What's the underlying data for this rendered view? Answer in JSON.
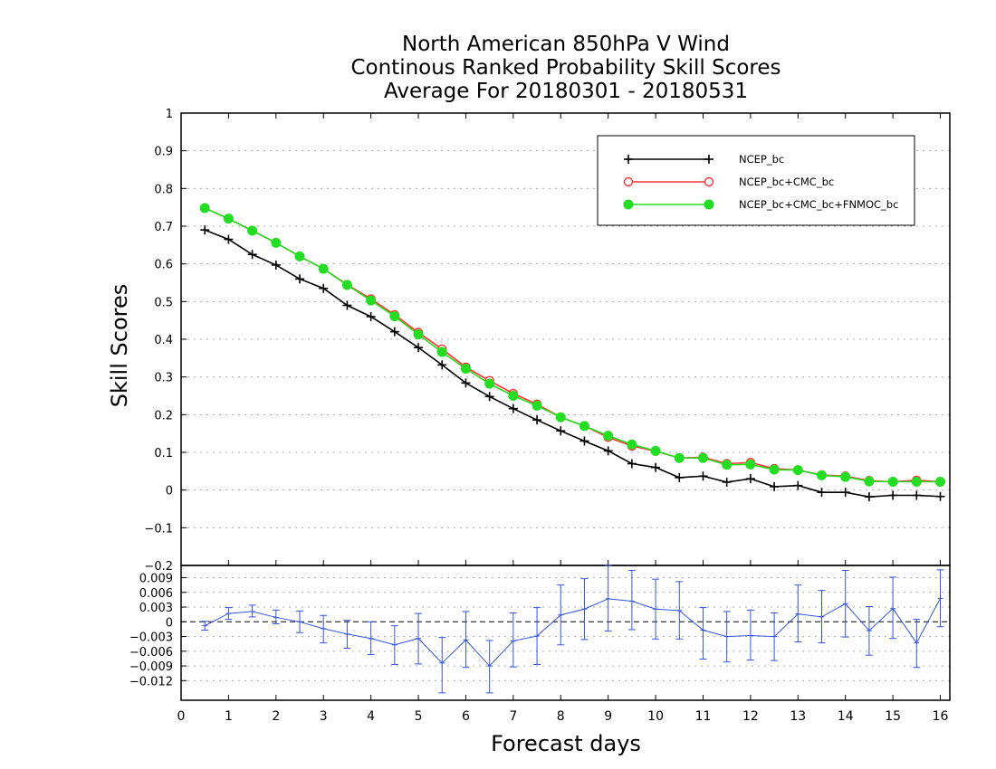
{
  "chart_data": [
    {
      "type": "line",
      "title": [
        "North American 850hPa V Wind",
        "Continous Ranked Probability Skill Scores",
        "Average For 20180301 - 20180531"
      ],
      "xlabel": "Forecast days",
      "ylabel": "Skill Scores",
      "xlim": [
        0,
        16.2
      ],
      "ylim": [
        -0.2,
        1
      ],
      "xticks": [
        "0",
        "1",
        "2",
        "3",
        "4",
        "5",
        "6",
        "7",
        "8",
        "9",
        "10",
        "11",
        "12",
        "13",
        "14",
        "15",
        "16"
      ],
      "yticks": [
        "−0.2",
        "−0.1",
        "0",
        "0.1",
        "0.2",
        "0.3",
        "0.4",
        "0.5",
        "0.6",
        "0.7",
        "0.8",
        "0.9",
        "1"
      ],
      "yticks_values": [
        -0.2,
        -0.1,
        0,
        0.1,
        0.2,
        0.3,
        0.4,
        0.5,
        0.6,
        0.7,
        0.8,
        0.9,
        1
      ],
      "grid": true,
      "legend_position": "top-right",
      "x": [
        0.5,
        1,
        1.5,
        2,
        2.5,
        3,
        3.5,
        4,
        4.5,
        5,
        5.5,
        6,
        6.5,
        7,
        7.5,
        8,
        8.5,
        9,
        9.5,
        10,
        10.5,
        11,
        11.5,
        12,
        12.5,
        13,
        13.5,
        14,
        14.5,
        15,
        15.5,
        16
      ],
      "series": [
        {
          "name": "NCEP_bc",
          "color": "#000000",
          "marker": "plus",
          "values": [
            0.69,
            0.665,
            0.625,
            0.597,
            0.56,
            0.535,
            0.49,
            0.46,
            0.42,
            0.378,
            0.332,
            0.284,
            0.248,
            0.216,
            0.186,
            0.157,
            0.13,
            0.104,
            0.07,
            0.06,
            0.033,
            0.037,
            0.021,
            0.03,
            0.009,
            0.012,
            -0.006,
            -0.006,
            -0.018,
            -0.014,
            -0.014,
            -0.017
          ]
        },
        {
          "name": "NCEP_bc+CMC_bc",
          "color": "#ff3333",
          "marker": "open-circle",
          "values": [
            0.748,
            0.72,
            0.688,
            0.656,
            0.62,
            0.587,
            0.545,
            0.507,
            0.465,
            0.418,
            0.374,
            0.326,
            0.29,
            0.256,
            0.228,
            0.193,
            0.17,
            0.14,
            0.117,
            0.103,
            0.085,
            0.087,
            0.07,
            0.073,
            0.057,
            0.053,
            0.04,
            0.037,
            0.025,
            0.022,
            0.026,
            0.022
          ]
        },
        {
          "name": "NCEP_bc+CMC_bc+FNMOC_bc",
          "color": "#22dd22",
          "marker": "filled-circle",
          "values": [
            0.748,
            0.72,
            0.688,
            0.656,
            0.62,
            0.587,
            0.544,
            0.503,
            0.461,
            0.413,
            0.366,
            0.322,
            0.282,
            0.25,
            0.224,
            0.193,
            0.17,
            0.144,
            0.121,
            0.104,
            0.085,
            0.085,
            0.067,
            0.068,
            0.054,
            0.053,
            0.039,
            0.035,
            0.023,
            0.022,
            0.022,
            0.022
          ]
        }
      ]
    },
    {
      "type": "line",
      "subtype": "errorbar",
      "xlim": [
        0,
        16.2
      ],
      "ylim": [
        -0.016,
        0.0115
      ],
      "yticks": [
        "−0.012",
        "−0.009",
        "−0.006",
        "−0.003",
        "0",
        "0.003",
        "0.006",
        "0.009"
      ],
      "yticks_values": [
        -0.012,
        -0.009,
        -0.006,
        -0.003,
        0,
        0.003,
        0.006,
        0.009
      ],
      "grid": true,
      "zero_line": "dashed",
      "color": "#3355dd",
      "x": [
        0.5,
        1,
        1.5,
        2,
        2.5,
        3,
        3.5,
        4,
        4.5,
        5,
        5.5,
        6,
        6.5,
        7,
        7.5,
        8,
        8.5,
        9,
        9.5,
        10,
        10.5,
        11,
        11.5,
        12,
        12.5,
        13,
        13.5,
        14,
        14.5,
        15,
        15.5,
        16
      ],
      "values": [
        -0.0008,
        0.0017,
        0.0021,
        0.0009,
        0,
        -0.0014,
        -0.0025,
        -0.0034,
        -0.0047,
        -0.0034,
        -0.0084,
        -0.0037,
        -0.009,
        -0.0039,
        -0.0029,
        0.0014,
        0.0026,
        0.0047,
        0.0042,
        0.0026,
        0.0023,
        -0.0017,
        -0.003,
        -0.0028,
        -0.003,
        0.0016,
        0.001,
        0.0037,
        -0.0018,
        0.0027,
        -0.0043,
        0.0048
      ],
      "err_low": [
        -0.0017,
        0.0005,
        0.001,
        -0.0004,
        -0.0022,
        -0.0043,
        -0.0054,
        -0.0067,
        -0.0087,
        -0.0086,
        -0.0145,
        -0.0093,
        -0.0145,
        -0.0092,
        -0.0087,
        -0.0047,
        -0.0036,
        -0.0019,
        -0.0016,
        -0.0035,
        -0.0035,
        -0.0076,
        -0.0082,
        -0.0078,
        -0.0079,
        -0.0041,
        -0.0043,
        -0.0031,
        -0.0068,
        -0.0034,
        -0.0093,
        -0.001
      ],
      "err_high": [
        0.0001,
        0.0029,
        0.0034,
        0.0024,
        0.0022,
        0.0013,
        0.0003,
        0,
        -0.0008,
        0.0017,
        -0.0032,
        0.0021,
        -0.0038,
        0.0018,
        0.0029,
        0.0075,
        0.0088,
        0.0115,
        0.0105,
        0.0087,
        0.0082,
        0.0029,
        0.0021,
        0.0024,
        0.0018,
        0.0075,
        0.0064,
        0.0105,
        0.0031,
        0.0091,
        0.0005,
        0.0106
      ]
    }
  ]
}
